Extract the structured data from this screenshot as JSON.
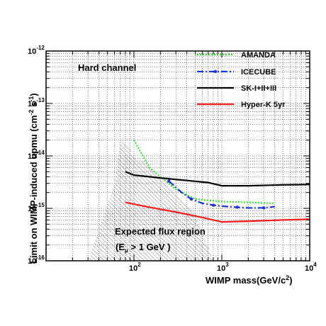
{
  "chart_data": {
    "type": "line",
    "title": "",
    "panel_label": "Hard channel",
    "xlabel": "WIMP mass(GeV/c²)",
    "ylabel": "Limit on WIMP-induced upmu (cm⁻² s⁻¹)",
    "xscale": "log",
    "yscale": "log",
    "xlim": [
      10,
      10000
    ],
    "ylim": [
      1e-16,
      1e-12
    ],
    "grid": true,
    "legend_position": "top-right",
    "x_tick_labels": [
      {
        "value": 100,
        "base": "10",
        "exp": "2"
      },
      {
        "value": 1000,
        "base": "10",
        "exp": "3"
      },
      {
        "value": 10000,
        "base": "10",
        "exp": "4"
      }
    ],
    "y_tick_labels": [
      {
        "value": 1e-16,
        "base": "10",
        "exp": "-16"
      },
      {
        "value": 1e-15,
        "base": "10",
        "exp": "-15"
      },
      {
        "value": 1e-14,
        "base": "10",
        "exp": "-14"
      },
      {
        "value": 1e-13,
        "base": "10",
        "exp": "-13"
      },
      {
        "value": 1e-12,
        "base": "10",
        "exp": "-12"
      }
    ],
    "series": [
      {
        "name": "AMANDA",
        "color": "#33dd33",
        "style": "dotted",
        "x": [
          100,
          150,
          200,
          300,
          500,
          1000,
          2000,
          4000
        ],
        "y": [
          2e-14,
          6e-15,
          4e-15,
          2.3e-15,
          1.5e-15,
          1.35e-15,
          1.3e-15,
          1.25e-15
        ]
      },
      {
        "name": "ICECUBE",
        "color": "#1a33dd",
        "style": "dashdot",
        "x": [
          250,
          350,
          450,
          600,
          800,
          1000,
          1500,
          2000,
          3000,
          4000
        ],
        "y": [
          3.3e-15,
          2e-15,
          1.5e-15,
          1.25e-15,
          1.15e-15,
          1.1e-15,
          1.05e-15,
          1.02e-15,
          1.02e-15,
          1.08e-15
        ]
      },
      {
        "name": "SK-I+II+III",
        "color": "#000000",
        "style": "solid",
        "x": [
          80,
          100,
          150,
          200,
          400,
          700,
          1000,
          2000,
          5000,
          10000
        ],
        "y": [
          5e-15,
          4.3e-15,
          4e-15,
          3.8e-15,
          3.4e-15,
          3.1e-15,
          2.7e-15,
          2.7e-15,
          2.8e-15,
          2.85e-15
        ]
      },
      {
        "name": "Hyper-K 5yr",
        "color": "#ff1a1a",
        "style": "solid",
        "x": [
          80,
          150,
          300,
          600,
          1000,
          2000,
          5000,
          10000
        ],
        "y": [
          1.3e-15,
          1.05e-15,
          8.5e-16,
          6.7e-16,
          5.5e-16,
          5.7e-16,
          6e-16,
          6.2e-16
        ]
      }
    ],
    "region": {
      "label_line1": "Expected flux region",
      "label_line2_main": "(E",
      "label_line2_sub": "μ",
      "label_line2_rest": " > 1 GeV  )",
      "x": [
        30,
        60,
        70,
        80,
        100,
        150,
        200,
        300,
        500,
        800,
        800,
        500,
        300,
        200,
        150,
        100,
        80,
        70,
        60,
        30
      ],
      "y_upper": [
        1e-16,
        3e-15,
        1.8e-14,
        1.8e-14,
        1e-14,
        6e-15,
        3.5e-15,
        2e-15,
        7e-16,
        1e-16,
        1e-16,
        1e-16,
        1e-16,
        1e-16,
        1e-16,
        1e-16,
        1e-16,
        1e-16,
        1e-16,
        1e-16
      ]
    }
  }
}
